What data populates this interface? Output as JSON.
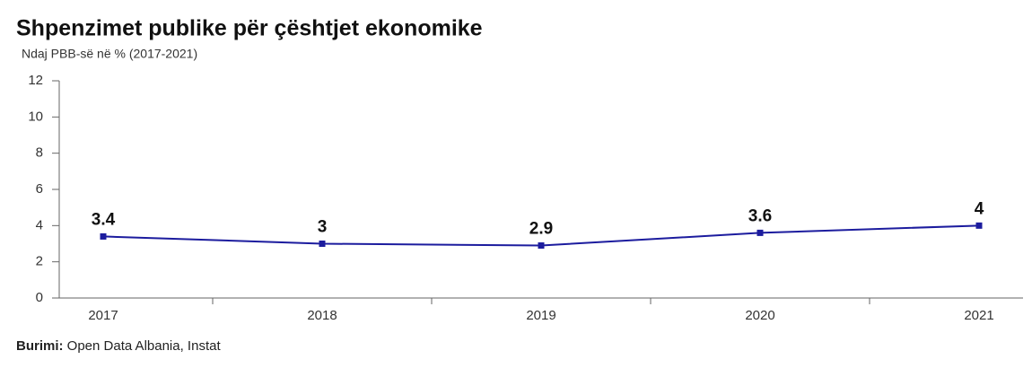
{
  "chart_data": {
    "type": "line",
    "title": "Shpenzimet publike për çështjet ekonomike",
    "subtitle": "Ndaj PBB-së në % (2017-2021)",
    "source_label": "Burimi:",
    "source_text": "Open Data Albania, Instat",
    "categories": [
      "2017",
      "2018",
      "2019",
      "2020",
      "2021"
    ],
    "values": [
      3.4,
      3,
      2.9,
      3.6,
      4
    ],
    "color": "#1c1c9e",
    "ylim": [
      0,
      12
    ],
    "yticks": [
      0,
      2,
      4,
      6,
      8,
      10,
      12
    ],
    "grid": false
  }
}
